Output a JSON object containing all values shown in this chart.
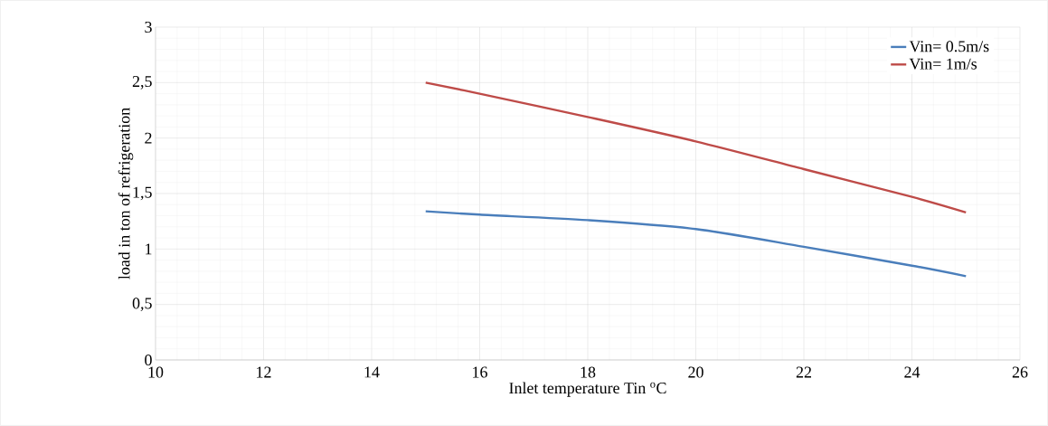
{
  "chart_data": {
    "type": "line",
    "xlabel": "Inlet temperature Tin $^{o}$C",
    "ylabel": "load in ton of refrigeration",
    "x": [
      15,
      16,
      18,
      20,
      22,
      24,
      25
    ],
    "series": [
      {
        "name": "Vin= 0.5m/s",
        "color": "#4a7ebb",
        "values": [
          1.34,
          1.31,
          1.26,
          1.18,
          1.02,
          0.85,
          0.755
        ]
      },
      {
        "name": "Vin= 1m/s",
        "color": "#be4b48",
        "values": [
          2.5,
          2.4,
          2.19,
          1.97,
          1.72,
          1.47,
          1.33
        ]
      }
    ],
    "xlim": [
      10,
      26
    ],
    "xticks": [
      10,
      12,
      14,
      16,
      18,
      20,
      22,
      24,
      26
    ],
    "ylim": [
      0,
      3
    ],
    "yticks": [
      0,
      {
        "value": 0.5,
        "label": "0,5"
      },
      1,
      {
        "value": 1.5,
        "label": "1,5"
      },
      2,
      {
        "value": 2.5,
        "label": "2,5"
      },
      3
    ],
    "grid": true,
    "legend": "top right",
    "marker": "none",
    "line_style": "solid"
  }
}
